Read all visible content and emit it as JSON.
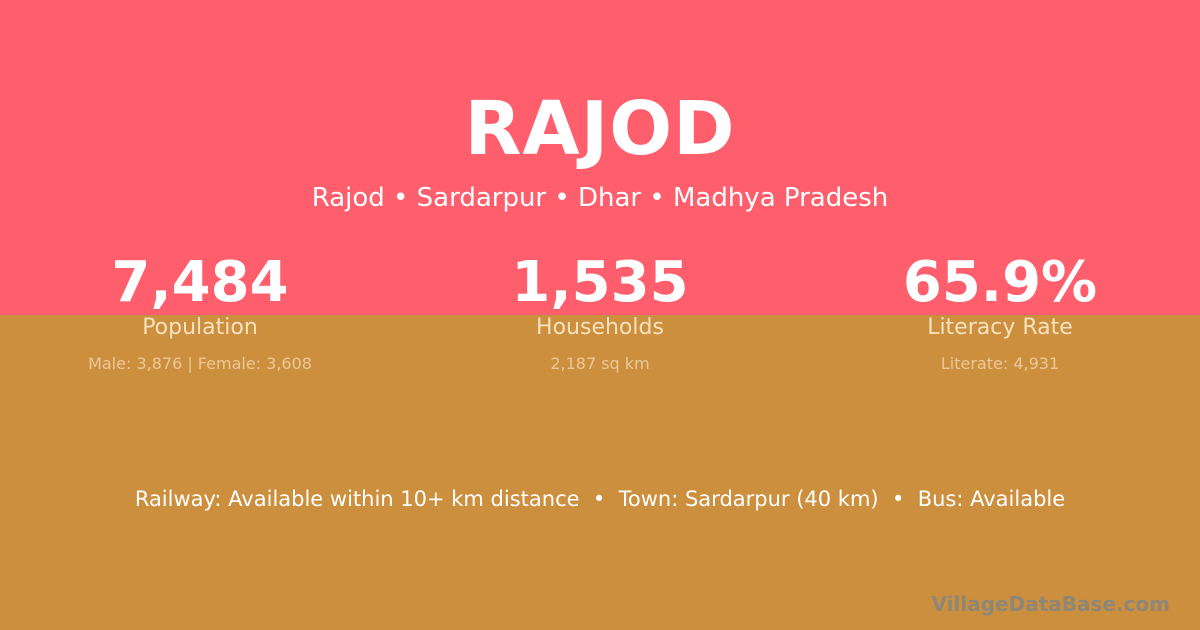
{
  "colors": {
    "top_bg": "#FF5F6D",
    "bottom_bg": "#CC8F3D"
  },
  "title": "RAJOD",
  "subtitle": "Rajod • Sardarpur • Dhar • Madhya Pradesh",
  "stats": [
    {
      "value": "7,484",
      "label": "Population",
      "detail": "Male: 3,876 | Female: 3,608"
    },
    {
      "value": "1,535",
      "label": "Households",
      "detail": "2,187 sq km"
    },
    {
      "value": "65.9%",
      "label": "Literacy Rate",
      "detail": "Literate: 4,931"
    }
  ],
  "facts": "Railway: Available within 10+ km distance  •  Town: Sardarpur (40 km)  •  Bus: Available",
  "brand": "VillageDataBase.com"
}
